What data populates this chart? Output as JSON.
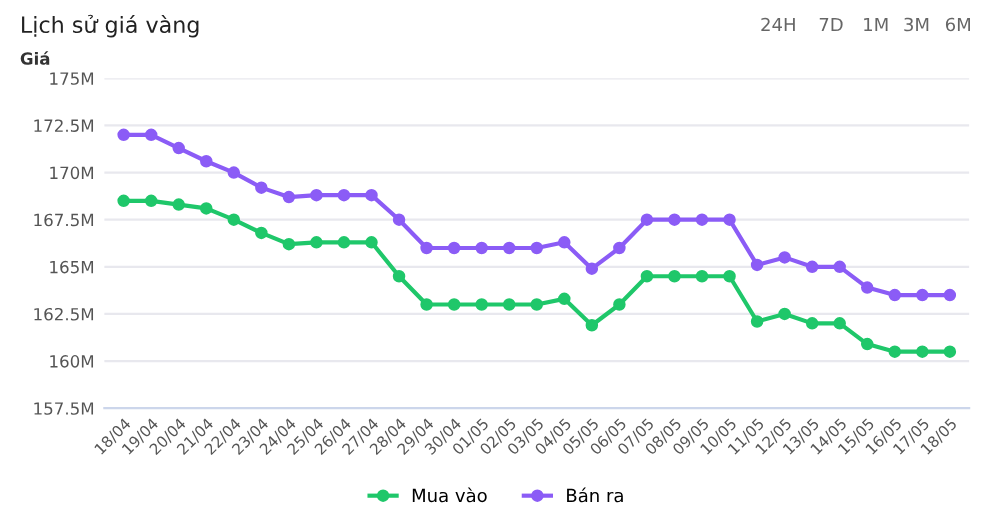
{
  "chart_data": {
    "type": "line",
    "title": "Lịch sử giá vàng",
    "ylabel": "Giá",
    "annotations": [
      "24H",
      "7D",
      "1M",
      "3M",
      "6M"
    ],
    "categories": [
      "18/04",
      "19/04",
      "20/04",
      "21/04",
      "22/04",
      "23/04",
      "24/04",
      "25/04",
      "26/04",
      "27/04",
      "28/04",
      "29/04",
      "30/04",
      "01/05",
      "02/05",
      "03/05",
      "04/05",
      "05/05",
      "06/05",
      "07/05",
      "08/05",
      "09/05",
      "10/05",
      "11/05",
      "12/05",
      "13/05",
      "14/05",
      "15/05",
      "16/05",
      "17/05",
      "18/05"
    ],
    "series": [
      {
        "name": "Mua vào",
        "color": "#1fc76a",
        "values": [
          168.5,
          168.5,
          168.3,
          168.1,
          167.5,
          166.8,
          166.2,
          166.3,
          166.3,
          166.3,
          164.5,
          163,
          163,
          163,
          163,
          163,
          163.3,
          161.9,
          163,
          164.5,
          164.5,
          164.5,
          164.5,
          162.1,
          162.5,
          162,
          162,
          160.9,
          160.5,
          160.5,
          160.5
        ]
      },
      {
        "name": "Bán ra",
        "color": "#8b5cf6",
        "values": [
          172,
          172,
          171.3,
          170.6,
          170,
          169.2,
          168.7,
          168.8,
          168.8,
          168.8,
          167.5,
          166,
          166,
          166,
          166,
          166,
          166.3,
          164.9,
          166,
          167.5,
          167.5,
          167.5,
          167.5,
          165.1,
          165.5,
          165,
          165,
          163.9,
          163.5,
          163.5,
          163.5
        ]
      }
    ],
    "ylim": [
      157.5,
      175
    ],
    "yticks": [
      {
        "value": 157.5,
        "label": "157.5M"
      },
      {
        "value": 160,
        "label": "160M"
      },
      {
        "value": 162.5,
        "label": "162.5M"
      },
      {
        "value": 165,
        "label": "165M"
      },
      {
        "value": 167.5,
        "label": "167.5M"
      },
      {
        "value": 170,
        "label": "170M"
      },
      {
        "value": 172.5,
        "label": "172.5M"
      },
      {
        "value": 175,
        "label": "175M"
      }
    ],
    "grid": "y",
    "legend": "bottom",
    "marker": "circle",
    "line_style": "solid"
  }
}
